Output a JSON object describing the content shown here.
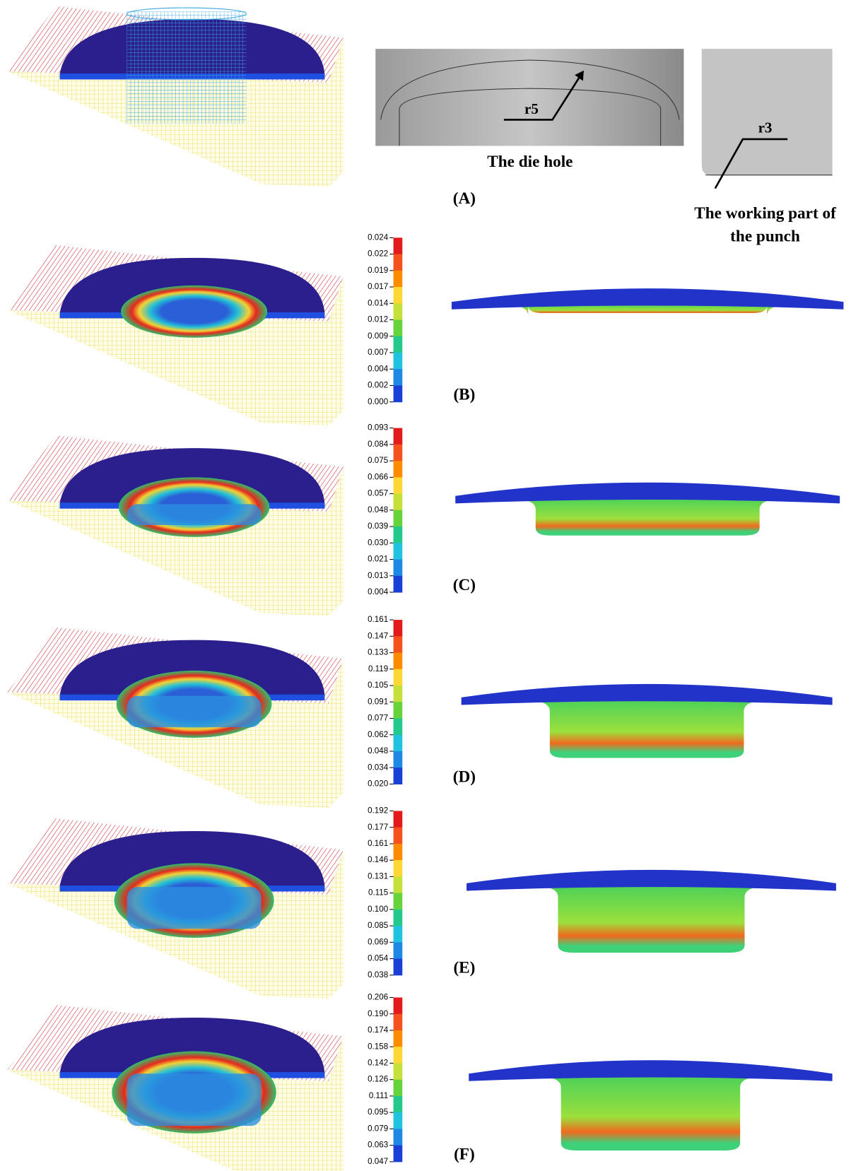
{
  "panel_a": {
    "label": "(A)",
    "die_hole": {
      "radius_label": "r5",
      "caption": "The die hole"
    },
    "punch": {
      "radius_label": "r3",
      "caption_lines": [
        "The working part of",
        "the punch"
      ]
    }
  },
  "panels": [
    {
      "label": "(B)",
      "colorbar": [
        "0.024",
        "0.022",
        "0.019",
        "0.017",
        "0.014",
        "0.012",
        "0.009",
        "0.007",
        "0.004",
        "0.002",
        "0.000"
      ]
    },
    {
      "label": "(C)",
      "colorbar": [
        "0.093",
        "0.084",
        "0.075",
        "0.066",
        "0.057",
        "0.048",
        "0.039",
        "0.030",
        "0.021",
        "0.013",
        "0.004"
      ]
    },
    {
      "label": "(D)",
      "colorbar": [
        "0.161",
        "0.147",
        "0.133",
        "0.119",
        "0.105",
        "0.091",
        "0.077",
        "0.062",
        "0.048",
        "0.034",
        "0.020"
      ]
    },
    {
      "label": "(E)",
      "colorbar": [
        "0.192",
        "0.177",
        "0.161",
        "0.146",
        "0.131",
        "0.115",
        "0.100",
        "0.085",
        "0.069",
        "0.054",
        "0.038"
      ]
    },
    {
      "label": "(F)",
      "colorbar": [
        "0.206",
        "0.190",
        "0.174",
        "0.158",
        "0.142",
        "0.126",
        "0.111",
        "0.095",
        "0.079",
        "0.063",
        "0.047"
      ]
    }
  ]
}
